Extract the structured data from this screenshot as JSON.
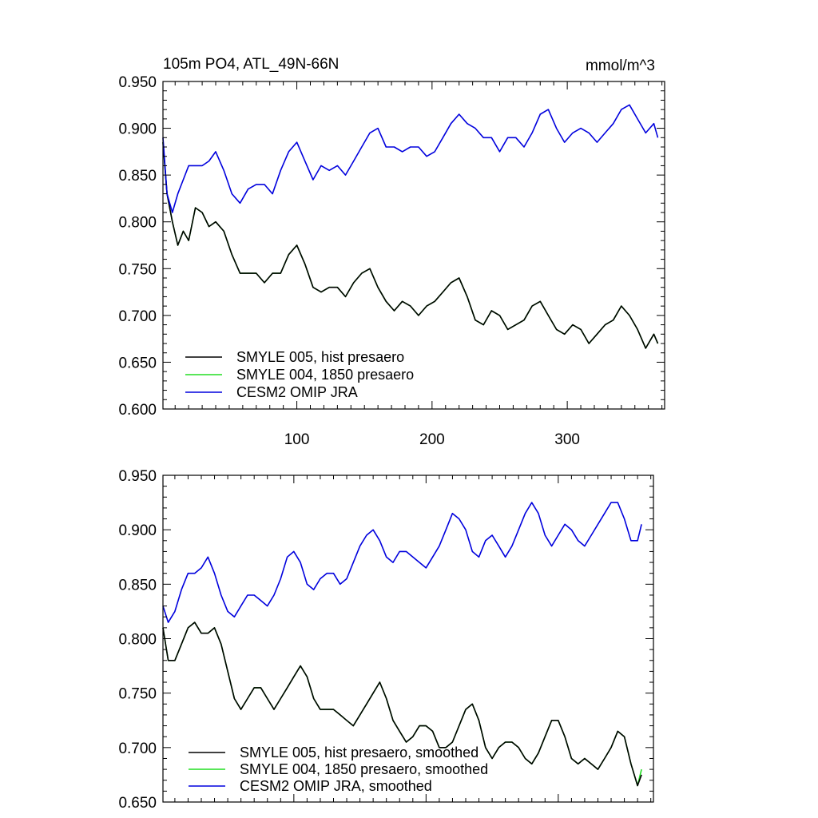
{
  "chart_data": [
    {
      "type": "line",
      "title": "105m PO4, ATL_49N-66N",
      "units": "mmol/m^3",
      "xlabel": "",
      "ylabel": "",
      "xlim": [
        1,
        372
      ],
      "ylim": [
        0.6,
        0.95
      ],
      "x_ticks": [
        100,
        200,
        300
      ],
      "x_tick_labels": [
        "100",
        "200",
        "300"
      ],
      "y_ticks": [
        0.6,
        0.65,
        0.7,
        0.75,
        0.8,
        0.85,
        0.9,
        0.95
      ],
      "y_tick_labels": [
        "0.600",
        "0.650",
        "0.700",
        "0.750",
        "0.800",
        "0.850",
        "0.900",
        "0.950"
      ],
      "grid": false,
      "legend_position": "bottom-left",
      "series_key_points_note": "",
      "series": [
        {
          "name": "SMYLE 005, hist presaero",
          "color": "#000000",
          "x": [
            1,
            4,
            8,
            12,
            16,
            20,
            25,
            30,
            35,
            40,
            46,
            52,
            58,
            64,
            70,
            76,
            82,
            88,
            94,
            100,
            106,
            112,
            118,
            124,
            130,
            136,
            142,
            148,
            154,
            160,
            166,
            172,
            178,
            184,
            190,
            196,
            202,
            208,
            214,
            220,
            226,
            232,
            238,
            244,
            250,
            256,
            262,
            268,
            274,
            280,
            286,
            292,
            298,
            304,
            310,
            316,
            322,
            328,
            334,
            340,
            346,
            352,
            358,
            364,
            367
          ],
          "values": [
            0.885,
            0.83,
            0.8,
            0.775,
            0.79,
            0.78,
            0.815,
            0.81,
            0.795,
            0.8,
            0.79,
            0.765,
            0.745,
            0.745,
            0.745,
            0.735,
            0.745,
            0.745,
            0.765,
            0.775,
            0.755,
            0.73,
            0.725,
            0.73,
            0.73,
            0.72,
            0.735,
            0.745,
            0.75,
            0.73,
            0.715,
            0.705,
            0.715,
            0.71,
            0.7,
            0.71,
            0.715,
            0.725,
            0.735,
            0.74,
            0.72,
            0.695,
            0.69,
            0.705,
            0.7,
            0.685,
            0.69,
            0.695,
            0.71,
            0.715,
            0.7,
            0.685,
            0.68,
            0.69,
            0.685,
            0.67,
            0.68,
            0.69,
            0.695,
            0.71,
            0.7,
            0.685,
            0.665,
            0.68,
            0.67
          ]
        },
        {
          "name": "SMYLE 004, 1850 presaero",
          "color": "#22dd22",
          "x": [
            1,
            4,
            8,
            12,
            16,
            20,
            25,
            30,
            35,
            40,
            46,
            52,
            58,
            64,
            70,
            76,
            82,
            88,
            94,
            100,
            106,
            112,
            118,
            124,
            130,
            136,
            142,
            148,
            154,
            160,
            166,
            172,
            178,
            184,
            190,
            196,
            202,
            208,
            214,
            220,
            226,
            232,
            238,
            244,
            250,
            256,
            262,
            268,
            274,
            280,
            286,
            292,
            298,
            304,
            310,
            316,
            322,
            328,
            334,
            340,
            346,
            352,
            358,
            364,
            367
          ],
          "values": [
            0.885,
            0.83,
            0.8,
            0.775,
            0.79,
            0.78,
            0.815,
            0.81,
            0.795,
            0.8,
            0.79,
            0.765,
            0.745,
            0.745,
            0.745,
            0.735,
            0.745,
            0.745,
            0.765,
            0.775,
            0.755,
            0.73,
            0.725,
            0.73,
            0.73,
            0.72,
            0.735,
            0.745,
            0.75,
            0.73,
            0.715,
            0.705,
            0.715,
            0.71,
            0.7,
            0.71,
            0.715,
            0.725,
            0.735,
            0.74,
            0.72,
            0.695,
            0.69,
            0.705,
            0.7,
            0.685,
            0.69,
            0.695,
            0.71,
            0.715,
            0.7,
            0.685,
            0.68,
            0.69,
            0.685,
            0.67,
            0.68,
            0.69,
            0.695,
            0.71,
            0.7,
            0.685,
            0.665,
            0.68,
            0.67
          ]
        },
        {
          "name": "CESM2 OMIP JRA",
          "color": "#0000dd",
          "x": [
            1,
            4,
            8,
            12,
            16,
            20,
            25,
            30,
            35,
            40,
            46,
            52,
            58,
            64,
            70,
            76,
            82,
            88,
            94,
            100,
            106,
            112,
            118,
            124,
            130,
            136,
            142,
            148,
            154,
            160,
            166,
            172,
            178,
            184,
            190,
            196,
            202,
            208,
            214,
            220,
            226,
            232,
            238,
            244,
            250,
            256,
            262,
            268,
            274,
            280,
            286,
            292,
            298,
            304,
            310,
            316,
            322,
            328,
            334,
            340,
            346,
            352,
            358,
            364,
            367
          ],
          "values": [
            0.89,
            0.83,
            0.81,
            0.83,
            0.845,
            0.86,
            0.86,
            0.86,
            0.865,
            0.875,
            0.855,
            0.83,
            0.82,
            0.835,
            0.84,
            0.84,
            0.83,
            0.855,
            0.875,
            0.885,
            0.865,
            0.845,
            0.86,
            0.855,
            0.86,
            0.85,
            0.865,
            0.88,
            0.895,
            0.9,
            0.88,
            0.88,
            0.875,
            0.88,
            0.88,
            0.87,
            0.875,
            0.89,
            0.905,
            0.915,
            0.905,
            0.9,
            0.89,
            0.89,
            0.875,
            0.89,
            0.89,
            0.88,
            0.895,
            0.915,
            0.92,
            0.9,
            0.885,
            0.895,
            0.9,
            0.895,
            0.885,
            0.895,
            0.905,
            0.92,
            0.925,
            0.91,
            0.895,
            0.905,
            0.89
          ]
        }
      ]
    },
    {
      "type": "line",
      "title": "",
      "xlabel": "",
      "ylabel": "",
      "xlim": [
        1,
        372
      ],
      "ylim": [
        0.65,
        0.95
      ],
      "x_ticks": [
        100,
        200,
        300
      ],
      "x_tick_labels": [],
      "y_ticks": [
        0.65,
        0.7,
        0.75,
        0.8,
        0.85,
        0.9,
        0.95
      ],
      "y_tick_labels": [
        "0.650",
        "0.700",
        "0.750",
        "0.800",
        "0.850",
        "0.900",
        "0.950"
      ],
      "grid": false,
      "legend_position": "bottom-left",
      "series": [
        {
          "name": "SMYLE 005, hist presaero, smoothed",
          "color": "#000000",
          "x": [
            1,
            5,
            10,
            15,
            20,
            25,
            30,
            35,
            40,
            45,
            50,
            55,
            60,
            65,
            70,
            75,
            80,
            85,
            90,
            95,
            100,
            105,
            110,
            115,
            120,
            125,
            130,
            135,
            140,
            145,
            150,
            155,
            160,
            165,
            170,
            175,
            180,
            185,
            190,
            195,
            200,
            205,
            210,
            215,
            220,
            225,
            230,
            235,
            240,
            245,
            250,
            255,
            260,
            265,
            270,
            275,
            280,
            285,
            290,
            295,
            300,
            305,
            310,
            315,
            320,
            325,
            330,
            335,
            340,
            345,
            350,
            355,
            360,
            363
          ],
          "values": [
            0.81,
            0.78,
            0.78,
            0.795,
            0.81,
            0.815,
            0.805,
            0.805,
            0.81,
            0.795,
            0.77,
            0.745,
            0.735,
            0.745,
            0.755,
            0.755,
            0.745,
            0.735,
            0.745,
            0.755,
            0.765,
            0.775,
            0.765,
            0.745,
            0.735,
            0.735,
            0.735,
            0.73,
            0.725,
            0.72,
            0.73,
            0.74,
            0.75,
            0.76,
            0.745,
            0.725,
            0.715,
            0.705,
            0.71,
            0.72,
            0.72,
            0.715,
            0.7,
            0.7,
            0.705,
            0.72,
            0.735,
            0.74,
            0.725,
            0.7,
            0.69,
            0.7,
            0.705,
            0.705,
            0.7,
            0.69,
            0.685,
            0.695,
            0.71,
            0.725,
            0.725,
            0.71,
            0.69,
            0.685,
            0.69,
            0.685,
            0.68,
            0.69,
            0.7,
            0.715,
            0.71,
            0.685,
            0.665,
            0.675
          ]
        },
        {
          "name": "SMYLE 004, 1850 presaero, smoothed",
          "color": "#22dd22",
          "x": [
            1,
            5,
            10,
            15,
            20,
            25,
            30,
            35,
            40,
            45,
            50,
            55,
            60,
            65,
            70,
            75,
            80,
            85,
            90,
            95,
            100,
            105,
            110,
            115,
            120,
            125,
            130,
            135,
            140,
            145,
            150,
            155,
            160,
            165,
            170,
            175,
            180,
            185,
            190,
            195,
            200,
            205,
            210,
            215,
            220,
            225,
            230,
            235,
            240,
            245,
            250,
            255,
            260,
            265,
            270,
            275,
            280,
            285,
            290,
            295,
            300,
            305,
            310,
            315,
            320,
            325,
            330,
            335,
            340,
            345,
            350,
            355,
            360,
            363
          ],
          "values": [
            0.81,
            0.78,
            0.78,
            0.795,
            0.81,
            0.815,
            0.805,
            0.805,
            0.81,
            0.795,
            0.77,
            0.745,
            0.735,
            0.745,
            0.755,
            0.755,
            0.745,
            0.735,
            0.745,
            0.755,
            0.765,
            0.775,
            0.765,
            0.745,
            0.735,
            0.735,
            0.735,
            0.73,
            0.725,
            0.72,
            0.73,
            0.74,
            0.75,
            0.76,
            0.745,
            0.725,
            0.715,
            0.705,
            0.71,
            0.72,
            0.72,
            0.715,
            0.7,
            0.7,
            0.705,
            0.72,
            0.735,
            0.74,
            0.725,
            0.7,
            0.69,
            0.7,
            0.705,
            0.705,
            0.7,
            0.69,
            0.685,
            0.695,
            0.71,
            0.725,
            0.725,
            0.71,
            0.69,
            0.685,
            0.69,
            0.685,
            0.68,
            0.69,
            0.7,
            0.715,
            0.71,
            0.685,
            0.665,
            0.68
          ]
        },
        {
          "name": "CESM2 OMIP JRA, smoothed",
          "color": "#0000dd",
          "x": [
            1,
            5,
            10,
            15,
            20,
            25,
            30,
            35,
            40,
            45,
            50,
            55,
            60,
            65,
            70,
            75,
            80,
            85,
            90,
            95,
            100,
            105,
            110,
            115,
            120,
            125,
            130,
            135,
            140,
            145,
            150,
            155,
            160,
            165,
            170,
            175,
            180,
            185,
            190,
            195,
            200,
            205,
            210,
            215,
            220,
            225,
            230,
            235,
            240,
            245,
            250,
            255,
            260,
            265,
            270,
            275,
            280,
            285,
            290,
            295,
            300,
            305,
            310,
            315,
            320,
            325,
            330,
            335,
            340,
            345,
            350,
            355,
            360,
            363
          ],
          "values": [
            0.83,
            0.815,
            0.825,
            0.845,
            0.86,
            0.86,
            0.865,
            0.875,
            0.86,
            0.84,
            0.825,
            0.82,
            0.83,
            0.84,
            0.84,
            0.835,
            0.83,
            0.84,
            0.855,
            0.875,
            0.88,
            0.87,
            0.85,
            0.845,
            0.855,
            0.86,
            0.86,
            0.85,
            0.855,
            0.87,
            0.885,
            0.895,
            0.9,
            0.89,
            0.875,
            0.87,
            0.88,
            0.88,
            0.875,
            0.87,
            0.865,
            0.875,
            0.885,
            0.9,
            0.915,
            0.91,
            0.9,
            0.88,
            0.875,
            0.89,
            0.895,
            0.885,
            0.875,
            0.885,
            0.9,
            0.915,
            0.925,
            0.915,
            0.895,
            0.885,
            0.895,
            0.905,
            0.9,
            0.89,
            0.885,
            0.895,
            0.905,
            0.915,
            0.925,
            0.925,
            0.91,
            0.89,
            0.89,
            0.905
          ]
        }
      ]
    }
  ]
}
